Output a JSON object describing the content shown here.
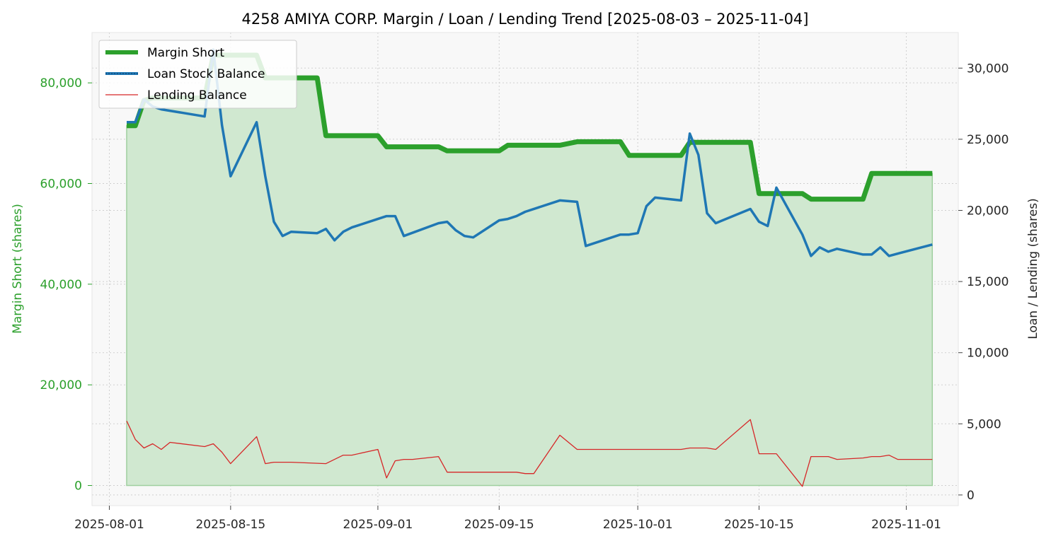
{
  "chart_data": {
    "type": "line",
    "title": "4258 AMIYA CORP. Margin / Loan / Lending Trend [2025-08-03 – 2025-11-04]",
    "xlabel": "",
    "ylabel_left": "Margin Short (shares)",
    "ylabel_right": "Loan / Lending (shares)",
    "x_range": [
      "2025-07-30",
      "2025-11-07"
    ],
    "ylim_left": [
      -4000,
      90000
    ],
    "ylim_right": [
      -750,
      32500
    ],
    "x_ticks": [
      "2025-08-01",
      "2025-08-15",
      "2025-09-01",
      "2025-09-15",
      "2025-10-01",
      "2025-10-15",
      "2025-11-01"
    ],
    "y_ticks_left": [
      0,
      20000,
      40000,
      60000,
      80000
    ],
    "y_ticks_left_labels": [
      "0",
      "20,000",
      "40,000",
      "60,000",
      "80,000"
    ],
    "y_ticks_right": [
      0,
      5000,
      10000,
      15000,
      20000,
      25000,
      30000
    ],
    "y_ticks_right_labels": [
      "0",
      "5,000",
      "10,000",
      "15,000",
      "20,000",
      "25,000",
      "30,000"
    ],
    "grid": true,
    "legend_position": "top-left",
    "colors": {
      "margin": "#2ca02c",
      "margin_fill": "#d0e8d0",
      "loan": "#1f77b4",
      "lending": "#d62728",
      "plot_bg": "#f8f8f8"
    },
    "series": [
      {
        "name": "Margin Short",
        "axis": "left",
        "x": [
          "2025-08-03",
          "2025-08-04",
          "2025-08-05",
          "2025-08-06",
          "2025-08-07",
          "2025-08-12",
          "2025-08-13",
          "2025-08-14",
          "2025-08-15",
          "2025-08-18",
          "2025-08-19",
          "2025-08-20",
          "2025-08-21",
          "2025-08-25",
          "2025-08-26",
          "2025-08-27",
          "2025-08-28",
          "2025-09-01",
          "2025-09-02",
          "2025-09-03",
          "2025-09-04",
          "2025-09-08",
          "2025-09-09",
          "2025-09-10",
          "2025-09-11",
          "2025-09-15",
          "2025-09-16",
          "2025-09-17",
          "2025-09-18",
          "2025-09-22",
          "2025-09-24",
          "2025-09-25",
          "2025-09-29",
          "2025-09-30",
          "2025-10-01",
          "2025-10-02",
          "2025-10-06",
          "2025-10-07",
          "2025-10-08",
          "2025-10-09",
          "2025-10-10",
          "2025-10-14",
          "2025-10-15",
          "2025-10-16",
          "2025-10-17",
          "2025-10-20",
          "2025-10-21",
          "2025-10-22",
          "2025-10-23",
          "2025-10-24",
          "2025-10-27",
          "2025-10-28",
          "2025-10-29",
          "2025-10-30",
          "2025-10-31",
          "2025-11-03",
          "2025-11-04"
        ],
        "values": [
          71500,
          71500,
          76500,
          77000,
          77000,
          77000,
          85500,
          85500,
          85500,
          85500,
          81000,
          81000,
          81000,
          81000,
          69500,
          69500,
          69500,
          69500,
          67300,
          67300,
          67300,
          67300,
          66500,
          66500,
          66500,
          66500,
          67600,
          67600,
          67600,
          67600,
          68300,
          68300,
          68300,
          65600,
          65600,
          65600,
          65600,
          68200,
          68200,
          68200,
          68200,
          68200,
          58000,
          58000,
          58000,
          58000,
          56900,
          56900,
          56900,
          56900,
          56900,
          62000,
          62000,
          62000,
          62000,
          62000,
          62000
        ]
      },
      {
        "name": "Loan Stock Balance",
        "axis": "right",
        "x": [
          "2025-08-03",
          "2025-08-04",
          "2025-08-05",
          "2025-08-06",
          "2025-08-07",
          "2025-08-12",
          "2025-08-13",
          "2025-08-14",
          "2025-08-15",
          "2025-08-18",
          "2025-08-19",
          "2025-08-20",
          "2025-08-21",
          "2025-08-22",
          "2025-08-25",
          "2025-08-26",
          "2025-08-27",
          "2025-08-28",
          "2025-08-29",
          "2025-09-01",
          "2025-09-02",
          "2025-09-03",
          "2025-09-04",
          "2025-09-08",
          "2025-09-09",
          "2025-09-10",
          "2025-09-11",
          "2025-09-12",
          "2025-09-15",
          "2025-09-16",
          "2025-09-17",
          "2025-09-18",
          "2025-09-22",
          "2025-09-24",
          "2025-09-25",
          "2025-09-29",
          "2025-09-30",
          "2025-10-01",
          "2025-10-02",
          "2025-10-03",
          "2025-10-06",
          "2025-10-07",
          "2025-10-08",
          "2025-10-09",
          "2025-10-10",
          "2025-10-14",
          "2025-10-15",
          "2025-10-16",
          "2025-10-17",
          "2025-10-20",
          "2025-10-21",
          "2025-10-22",
          "2025-10-23",
          "2025-10-24",
          "2025-10-27",
          "2025-10-28",
          "2025-10-29",
          "2025-10-30",
          "2025-11-04"
        ],
        "values": [
          26200,
          26200,
          27800,
          27300,
          27100,
          26600,
          31300,
          26000,
          22400,
          26200,
          22400,
          19200,
          18200,
          18500,
          18400,
          18700,
          17900,
          18500,
          18800,
          19400,
          19600,
          19600,
          18200,
          19100,
          19200,
          18600,
          18200,
          18100,
          19300,
          19400,
          19600,
          19900,
          20700,
          20600,
          17500,
          18300,
          18300,
          18400,
          20300,
          20900,
          20700,
          25400,
          23900,
          19800,
          19100,
          20100,
          19200,
          18900,
          21600,
          18300,
          16800,
          17400,
          17100,
          17300,
          16900,
          16900,
          17400,
          16800,
          17600
        ]
      },
      {
        "name": "Lending Balance",
        "axis": "right",
        "x": [
          "2025-08-03",
          "2025-08-04",
          "2025-08-05",
          "2025-08-06",
          "2025-08-07",
          "2025-08-08",
          "2025-08-12",
          "2025-08-13",
          "2025-08-14",
          "2025-08-15",
          "2025-08-18",
          "2025-08-19",
          "2025-08-20",
          "2025-08-21",
          "2025-08-22",
          "2025-08-26",
          "2025-08-27",
          "2025-08-28",
          "2025-08-29",
          "2025-09-01",
          "2025-09-02",
          "2025-09-03",
          "2025-09-04",
          "2025-09-05",
          "2025-09-08",
          "2025-09-09",
          "2025-09-17",
          "2025-09-18",
          "2025-09-19",
          "2025-09-22",
          "2025-09-24",
          "2025-09-25",
          "2025-10-06",
          "2025-10-07",
          "2025-10-09",
          "2025-10-10",
          "2025-10-14",
          "2025-10-15",
          "2025-10-17",
          "2025-10-20",
          "2025-10-21",
          "2025-10-22",
          "2025-10-23",
          "2025-10-24",
          "2025-10-27",
          "2025-10-28",
          "2025-10-29",
          "2025-10-30",
          "2025-10-31",
          "2025-11-04"
        ],
        "values": [
          5200,
          3900,
          3300,
          3600,
          3200,
          3700,
          3400,
          3600,
          3000,
          2200,
          4100,
          2200,
          2300,
          2300,
          2300,
          2200,
          2500,
          2800,
          2800,
          3200,
          1200,
          2400,
          2500,
          2500,
          2700,
          1600,
          1600,
          1500,
          1500,
          4200,
          3200,
          3200,
          3200,
          3300,
          3300,
          3200,
          5300,
          2900,
          2900,
          600,
          2700,
          2700,
          2700,
          2500,
          2600,
          2700,
          2700,
          2800,
          2500,
          2500
        ]
      }
    ]
  }
}
